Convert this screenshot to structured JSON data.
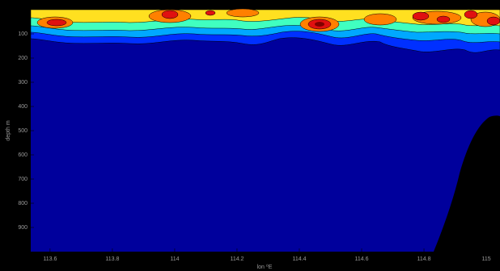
{
  "chart_data": {
    "type": "contour",
    "xlabel": "lon ⁰E",
    "ylabel": "depth m",
    "xlim": [
      113.538,
      115.044
    ],
    "xticks": [
      113.6,
      113.8,
      114,
      114.2,
      114.4,
      114.6,
      114.8,
      115
    ],
    "ylim": [
      0,
      1000
    ],
    "yticks": [
      100,
      200,
      300,
      400,
      500,
      600,
      700,
      800,
      900
    ],
    "y_reversed": true
  }
}
